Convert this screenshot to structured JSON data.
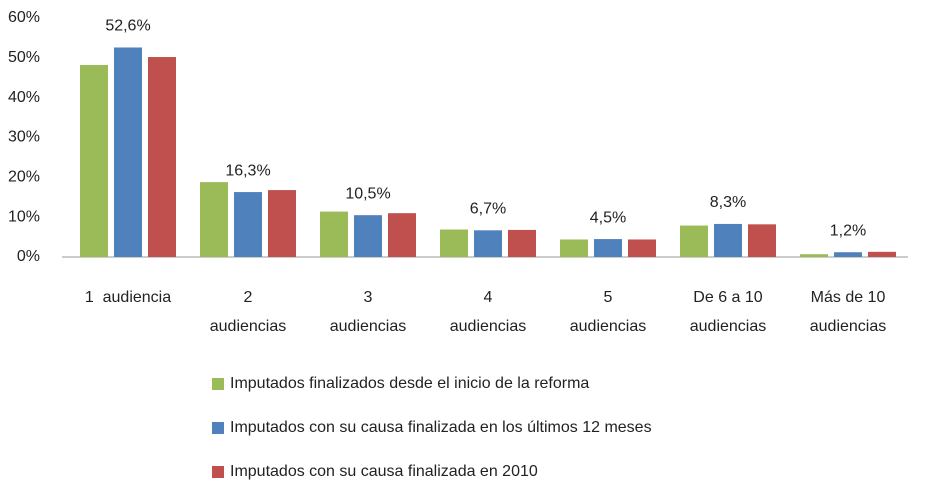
{
  "chart_data": {
    "type": "bar",
    "categories": [
      "1  audiencia",
      "2\naudiencias",
      "3\naudiencias",
      "4\naudiencias",
      "5\naudiencias",
      "De 6 a 10\naudiencias",
      "Más de 10\naudiencias"
    ],
    "series": [
      {
        "name": "Imputados finalizados desde el inicio de la reforma",
        "color": "#9bbb59",
        "values": [
          48.2,
          18.8,
          11.4,
          6.9,
          4.4,
          7.9,
          0.7
        ]
      },
      {
        "name": "Imputados con su causa finalizada en los últimos 12 meses",
        "color": "#4f81bd",
        "values": [
          52.6,
          16.3,
          10.5,
          6.7,
          4.5,
          8.3,
          1.2
        ],
        "value_labels": [
          "52,6%",
          "16,3%",
          "10,5%",
          "6,7%",
          "4,5%",
          "8,3%",
          "1,2%"
        ]
      },
      {
        "name": "Imputados con su causa finalizada en 2010",
        "color": "#c0504d",
        "values": [
          50.2,
          16.8,
          11.0,
          6.8,
          4.4,
          8.2,
          1.3
        ]
      }
    ],
    "ylim": [
      0,
      60
    ],
    "yticks": [
      {
        "value": 0,
        "label": "0%"
      },
      {
        "value": 10,
        "label": "10%"
      },
      {
        "value": 20,
        "label": "20%"
      },
      {
        "value": 30,
        "label": "30%"
      },
      {
        "value": 40,
        "label": "40%"
      },
      {
        "value": 50,
        "label": "50%"
      },
      {
        "value": 60,
        "label": "60%"
      }
    ],
    "grid": false,
    "legend": "bottom"
  }
}
